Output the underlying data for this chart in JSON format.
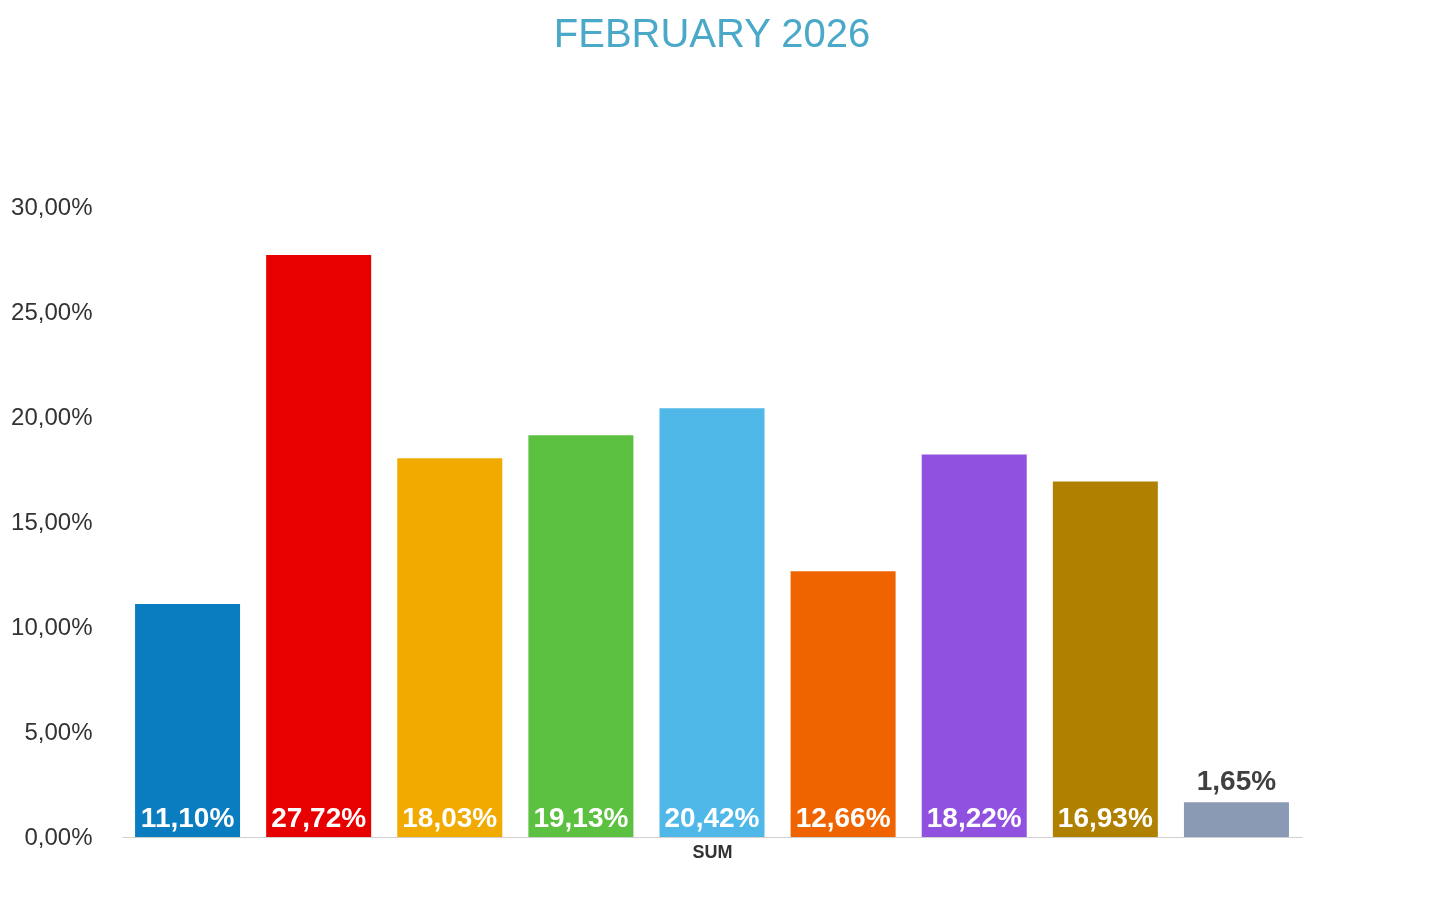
{
  "chart_data": {
    "type": "bar",
    "title": "FEBRUARY 2026",
    "xlabel": "SUM",
    "categories": [
      null,
      null,
      null,
      null,
      null,
      null,
      null,
      null,
      null
    ],
    "values": [
      11.1,
      27.72,
      18.03,
      19.13,
      20.42,
      12.66,
      18.22,
      16.93,
      1.65
    ],
    "colors": [
      "#0a7cc0",
      "#e80000",
      "#f0aa00",
      "#5cc040",
      "#4fb8e8",
      "#f06400",
      "#9050e0",
      "#b08000",
      "#8a9ab4"
    ],
    "value_labels": [
      "11,10%",
      "27,72%",
      "18,03%",
      "19,13%",
      "20,42%",
      "12,66%",
      "18,22%",
      "16,93%",
      "1,65%"
    ],
    "ylim": [
      0,
      30
    ],
    "yticks": [
      {
        "value": 0,
        "label": "0,00%"
      },
      {
        "value": 5,
        "label": "5,00%"
      },
      {
        "value": 10,
        "label": "10,00%"
      },
      {
        "value": 15,
        "label": "15,00%"
      },
      {
        "value": 20,
        "label": "20,00%"
      },
      {
        "value": 25,
        "label": "25,00%"
      },
      {
        "value": 30,
        "label": "30,00%"
      }
    ],
    "grid": false
  }
}
